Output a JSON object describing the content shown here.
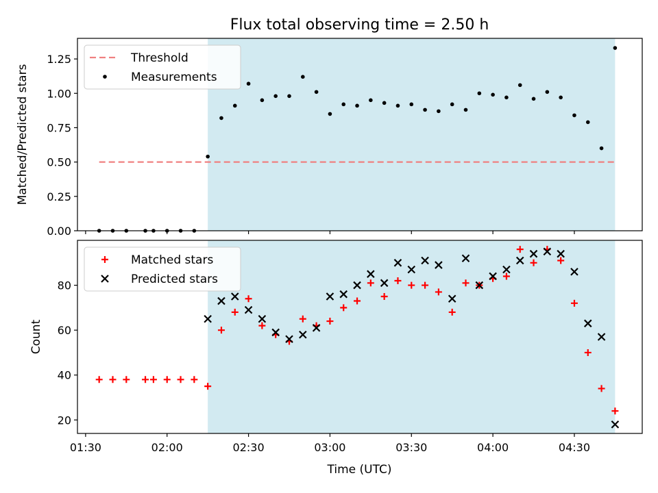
{
  "figure": {
    "title": "Flux total observing time = 2.50 h",
    "xlabel": "Time (UTC)"
  },
  "colors": {
    "shade": "#add8e6",
    "threshold": "#f08080",
    "matched": "#ff0000",
    "predicted": "#000000",
    "measurements": "#000000"
  },
  "chart_data": [
    {
      "type": "scatter",
      "panel": "top",
      "ylabel": "Matched/Predicted stars",
      "xlim": [
        "01:27",
        "04:55"
      ],
      "ylim": [
        0,
        1.4
      ],
      "x_ticks": [
        "01:30",
        "02:00",
        "02:30",
        "03:00",
        "03:30",
        "04:00",
        "04:30"
      ],
      "y_ticks": [
        "0.00",
        "0.25",
        "0.50",
        "0.75",
        "1.00",
        "1.25"
      ],
      "shaded_region": [
        "02:15",
        "04:45"
      ],
      "legend": {
        "position": "upper-left",
        "entries": [
          "Threshold",
          "Measurements"
        ]
      },
      "series": [
        {
          "name": "Threshold",
          "style": "dashed-line",
          "x": [
            "01:35",
            "04:45"
          ],
          "y": [
            0.5,
            0.5
          ]
        },
        {
          "name": "Measurements",
          "style": "dots",
          "x": [
            "01:35",
            "01:40",
            "01:45",
            "01:52",
            "01:55",
            "02:00",
            "02:05",
            "02:10",
            "02:15",
            "02:20",
            "02:25",
            "02:30",
            "02:35",
            "02:40",
            "02:45",
            "02:50",
            "02:55",
            "03:00",
            "03:05",
            "03:10",
            "03:15",
            "03:20",
            "03:25",
            "03:30",
            "03:35",
            "03:40",
            "03:45",
            "03:50",
            "03:55",
            "04:00",
            "04:05",
            "04:10",
            "04:15",
            "04:20",
            "04:25",
            "04:30",
            "04:35",
            "04:40",
            "04:45"
          ],
          "y": [
            0,
            0,
            0,
            0,
            0,
            0,
            0,
            0,
            0.54,
            0.82,
            0.91,
            1.07,
            0.95,
            0.98,
            0.98,
            1.12,
            1.01,
            0.85,
            0.92,
            0.91,
            0.95,
            0.93,
            0.91,
            0.92,
            0.88,
            0.87,
            0.92,
            0.88,
            1.0,
            0.99,
            0.97,
            1.06,
            0.96,
            1.01,
            0.97,
            0.84,
            0.79,
            0.6,
            1.33
          ]
        }
      ]
    },
    {
      "type": "scatter",
      "panel": "bottom",
      "ylabel": "Count",
      "xlim": [
        "01:27",
        "04:55"
      ],
      "ylim": [
        14,
        100
      ],
      "x_ticks": [
        "01:30",
        "02:00",
        "02:30",
        "03:00",
        "03:30",
        "04:00",
        "04:30"
      ],
      "y_ticks": [
        "20",
        "40",
        "60",
        "80"
      ],
      "shaded_region": [
        "02:15",
        "04:45"
      ],
      "legend": {
        "position": "upper-left",
        "entries": [
          "Matched stars",
          "Predicted stars"
        ]
      },
      "series": [
        {
          "name": "Matched stars",
          "marker": "plus",
          "x": [
            "01:35",
            "01:40",
            "01:45",
            "01:52",
            "01:55",
            "02:00",
            "02:05",
            "02:10",
            "02:15",
            "02:20",
            "02:25",
            "02:30",
            "02:35",
            "02:40",
            "02:45",
            "02:50",
            "02:55",
            "03:00",
            "03:05",
            "03:10",
            "03:15",
            "03:20",
            "03:25",
            "03:30",
            "03:35",
            "03:40",
            "03:45",
            "03:50",
            "03:55",
            "04:00",
            "04:05",
            "04:10",
            "04:15",
            "04:20",
            "04:25",
            "04:30",
            "04:35",
            "04:40",
            "04:45"
          ],
          "y": [
            38,
            38,
            38,
            38,
            38,
            38,
            38,
            38,
            35,
            60,
            68,
            74,
            62,
            58,
            55,
            65,
            62,
            64,
            70,
            73,
            81,
            75,
            82,
            80,
            80,
            77,
            68,
            81,
            80,
            83,
            84,
            96,
            90,
            96,
            91,
            72,
            50,
            34,
            24
          ]
        },
        {
          "name": "Predicted stars",
          "marker": "x",
          "x": [
            "02:15",
            "02:20",
            "02:25",
            "02:30",
            "02:35",
            "02:40",
            "02:45",
            "02:50",
            "02:55",
            "03:00",
            "03:05",
            "03:10",
            "03:15",
            "03:20",
            "03:25",
            "03:30",
            "03:35",
            "03:40",
            "03:45",
            "03:50",
            "03:55",
            "04:00",
            "04:05",
            "04:10",
            "04:15",
            "04:20",
            "04:25",
            "04:30",
            "04:35",
            "04:40",
            "04:45"
          ],
          "y": [
            65,
            73,
            75,
            69,
            65,
            59,
            56,
            58,
            61,
            75,
            76,
            80,
            85,
            81,
            90,
            87,
            91,
            89,
            74,
            92,
            80,
            84,
            87,
            91,
            94,
            95,
            94,
            86,
            63,
            57,
            18
          ]
        }
      ]
    }
  ]
}
